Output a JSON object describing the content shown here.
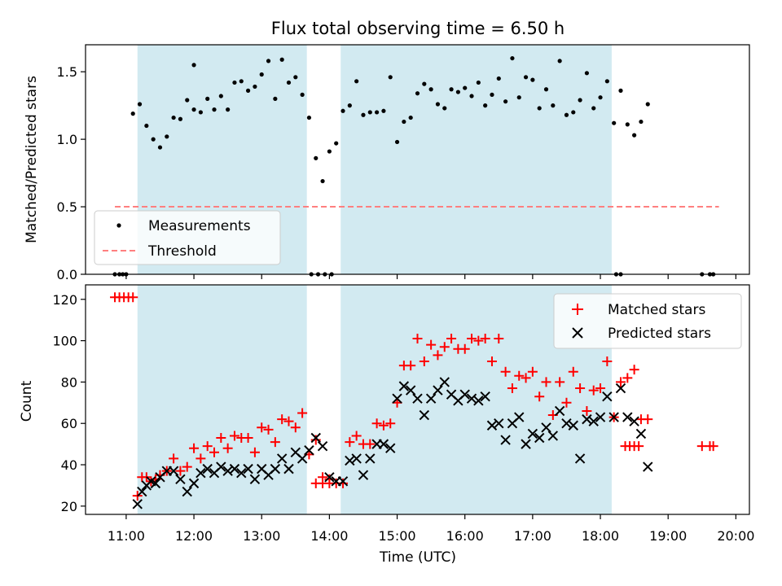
{
  "chart_data": {
    "type": "scatter",
    "title": "Flux total observing time = 6.50 h",
    "xlabel": "Time (UTC)",
    "xlim": [
      "10:24",
      "20:12"
    ],
    "x_ticks": [
      "11:00",
      "12:00",
      "13:00",
      "14:00",
      "15:00",
      "16:00",
      "17:00",
      "18:00",
      "19:00",
      "20:00"
    ],
    "observing_windows": [
      [
        "11:10",
        "13:40"
      ],
      [
        "14:10",
        "18:10"
      ]
    ],
    "window_color": "#add8e6",
    "top_panel": {
      "ylabel": "Matched/Predicted stars",
      "ylim": [
        0,
        1.7
      ],
      "y_ticks": [
        "0.0",
        "0.5",
        "1.0",
        "1.5"
      ],
      "legend_position": "lower-left",
      "measurements": {
        "name": "Measurements",
        "color": "#000000",
        "points": [
          [
            "10:50",
            0
          ],
          [
            "10:54",
            0
          ],
          [
            "10:57",
            0
          ],
          [
            "11:00",
            0
          ],
          [
            "11:06",
            1.19
          ],
          [
            "11:12",
            1.26
          ],
          [
            "11:18",
            1.1
          ],
          [
            "11:24",
            1.0
          ],
          [
            "11:30",
            0.94
          ],
          [
            "11:36",
            1.02
          ],
          [
            "11:42",
            1.16
          ],
          [
            "11:48",
            1.15
          ],
          [
            "11:54",
            1.29
          ],
          [
            "12:00",
            1.22
          ],
          [
            "12:00",
            1.55
          ],
          [
            "12:06",
            1.2
          ],
          [
            "12:12",
            1.3
          ],
          [
            "12:18",
            1.22
          ],
          [
            "12:24",
            1.32
          ],
          [
            "12:30",
            1.22
          ],
          [
            "12:36",
            1.42
          ],
          [
            "12:42",
            1.43
          ],
          [
            "12:48",
            1.36
          ],
          [
            "12:54",
            1.39
          ],
          [
            "13:00",
            1.48
          ],
          [
            "13:06",
            1.58
          ],
          [
            "13:12",
            1.3
          ],
          [
            "13:18",
            1.59
          ],
          [
            "13:24",
            1.42
          ],
          [
            "13:30",
            1.46
          ],
          [
            "13:36",
            1.33
          ],
          [
            "13:42",
            1.16
          ],
          [
            "13:48",
            0.86
          ],
          [
            "13:54",
            0.69
          ],
          [
            "14:00",
            0.91
          ],
          [
            "13:44",
            0
          ],
          [
            "13:50",
            0
          ],
          [
            "13:56",
            0
          ],
          [
            "14:02",
            0
          ],
          [
            "14:06",
            0.97
          ],
          [
            "14:12",
            1.21
          ],
          [
            "14:18",
            1.25
          ],
          [
            "14:24",
            1.43
          ],
          [
            "14:30",
            1.18
          ],
          [
            "14:36",
            1.2
          ],
          [
            "14:42",
            1.2
          ],
          [
            "14:48",
            1.21
          ],
          [
            "14:54",
            1.46
          ],
          [
            "15:00",
            0.98
          ],
          [
            "15:06",
            1.13
          ],
          [
            "15:12",
            1.16
          ],
          [
            "15:18",
            1.34
          ],
          [
            "15:24",
            1.41
          ],
          [
            "15:30",
            1.37
          ],
          [
            "15:36",
            1.26
          ],
          [
            "15:42",
            1.23
          ],
          [
            "15:48",
            1.37
          ],
          [
            "15:54",
            1.35
          ],
          [
            "16:00",
            1.38
          ],
          [
            "16:06",
            1.32
          ],
          [
            "16:12",
            1.42
          ],
          [
            "16:18",
            1.25
          ],
          [
            "16:24",
            1.33
          ],
          [
            "16:30",
            1.45
          ],
          [
            "16:36",
            1.28
          ],
          [
            "16:42",
            1.6
          ],
          [
            "16:48",
            1.31
          ],
          [
            "16:54",
            1.46
          ],
          [
            "17:00",
            1.44
          ],
          [
            "17:06",
            1.23
          ],
          [
            "17:12",
            1.37
          ],
          [
            "17:18",
            1.25
          ],
          [
            "17:24",
            1.58
          ],
          [
            "17:30",
            1.18
          ],
          [
            "17:36",
            1.2
          ],
          [
            "17:42",
            1.29
          ],
          [
            "17:48",
            1.49
          ],
          [
            "17:54",
            1.23
          ],
          [
            "18:00",
            1.31
          ],
          [
            "18:06",
            1.43
          ],
          [
            "18:12",
            1.12
          ],
          [
            "18:18",
            1.36
          ],
          [
            "18:24",
            1.11
          ],
          [
            "18:30",
            1.03
          ],
          [
            "18:36",
            1.13
          ],
          [
            "18:42",
            1.26
          ],
          [
            "18:14",
            0
          ],
          [
            "18:18",
            0
          ],
          [
            "19:30",
            0
          ],
          [
            "19:37",
            0
          ],
          [
            "19:40",
            0
          ]
        ]
      },
      "threshold": {
        "name": "Threshold",
        "value": 0.5,
        "x_range": [
          "10:50",
          "19:45"
        ],
        "color": "#ff7f7f"
      }
    },
    "bottom_panel": {
      "ylabel": "Count",
      "ylim": [
        16,
        127
      ],
      "y_ticks": [
        "20",
        "40",
        "60",
        "80",
        "100",
        "120"
      ],
      "legend_position": "upper-right",
      "series": [
        {
          "name": "Matched stars",
          "marker": "+",
          "color": "#ff0000",
          "points": [
            [
              "10:50",
              121
            ],
            [
              "10:54",
              121
            ],
            [
              "10:58",
              121
            ],
            [
              "11:02",
              121
            ],
            [
              "11:06",
              121
            ],
            [
              "11:10",
              25
            ],
            [
              "11:14",
              34
            ],
            [
              "11:18",
              34
            ],
            [
              "11:22",
              32
            ],
            [
              "11:26",
              33
            ],
            [
              "11:30",
              35
            ],
            [
              "11:36",
              37
            ],
            [
              "11:42",
              43
            ],
            [
              "11:48",
              37
            ],
            [
              "11:54",
              39
            ],
            [
              "12:00",
              48
            ],
            [
              "12:06",
              43
            ],
            [
              "12:12",
              49
            ],
            [
              "12:18",
              46
            ],
            [
              "12:24",
              53
            ],
            [
              "12:30",
              48
            ],
            [
              "12:36",
              54
            ],
            [
              "12:42",
              53
            ],
            [
              "12:48",
              53
            ],
            [
              "12:54",
              46
            ],
            [
              "13:00",
              58
            ],
            [
              "13:06",
              57
            ],
            [
              "13:12",
              51
            ],
            [
              "13:18",
              62
            ],
            [
              "13:24",
              61
            ],
            [
              "13:30",
              58
            ],
            [
              "13:36",
              65
            ],
            [
              "13:42",
              45
            ],
            [
              "13:48",
              52
            ],
            [
              "13:54",
              34
            ],
            [
              "14:00",
              33
            ],
            [
              "13:48",
              31
            ],
            [
              "13:54",
              31
            ],
            [
              "14:00",
              31
            ],
            [
              "14:06",
              31
            ],
            [
              "14:12",
              31
            ],
            [
              "14:18",
              51
            ],
            [
              "14:24",
              54
            ],
            [
              "14:30",
              50
            ],
            [
              "14:36",
              50
            ],
            [
              "14:42",
              60
            ],
            [
              "14:48",
              59
            ],
            [
              "14:54",
              60
            ],
            [
              "15:00",
              70
            ],
            [
              "15:06",
              88
            ],
            [
              "15:12",
              88
            ],
            [
              "15:18",
              101
            ],
            [
              "15:24",
              90
            ],
            [
              "15:30",
              98
            ],
            [
              "15:36",
              93
            ],
            [
              "15:42",
              97
            ],
            [
              "15:48",
              101
            ],
            [
              "15:54",
              96
            ],
            [
              "16:00",
              96
            ],
            [
              "16:06",
              101
            ],
            [
              "16:12",
              100
            ],
            [
              "16:18",
              101
            ],
            [
              "16:24",
              90
            ],
            [
              "16:30",
              101
            ],
            [
              "16:36",
              85
            ],
            [
              "16:42",
              77
            ],
            [
              "16:48",
              83
            ],
            [
              "16:54",
              82
            ],
            [
              "17:00",
              85
            ],
            [
              "17:06",
              73
            ],
            [
              "17:12",
              80
            ],
            [
              "17:18",
              64
            ],
            [
              "17:24",
              80
            ],
            [
              "17:30",
              70
            ],
            [
              "17:36",
              85
            ],
            [
              "17:42",
              77
            ],
            [
              "17:48",
              66
            ],
            [
              "17:54",
              76
            ],
            [
              "18:00",
              77
            ],
            [
              "18:06",
              90
            ],
            [
              "18:12",
              63
            ],
            [
              "18:18",
              80
            ],
            [
              "18:24",
              82
            ],
            [
              "18:30",
              86
            ],
            [
              "18:36",
              62
            ],
            [
              "18:42",
              62
            ],
            [
              "18:22",
              49
            ],
            [
              "18:26",
              49
            ],
            [
              "18:30",
              49
            ],
            [
              "18:34",
              49
            ],
            [
              "19:30",
              49
            ],
            [
              "19:37",
              49
            ],
            [
              "19:40",
              49
            ]
          ]
        },
        {
          "name": "Predicted stars",
          "marker": "x",
          "color": "#000000",
          "points": [
            [
              "11:10",
              21
            ],
            [
              "11:14",
              27
            ],
            [
              "11:18",
              30
            ],
            [
              "11:22",
              32
            ],
            [
              "11:26",
              31
            ],
            [
              "11:30",
              34
            ],
            [
              "11:36",
              37
            ],
            [
              "11:42",
              37
            ],
            [
              "11:48",
              33
            ],
            [
              "11:54",
              27
            ],
            [
              "12:00",
              31
            ],
            [
              "12:06",
              36
            ],
            [
              "12:12",
              38
            ],
            [
              "12:18",
              36
            ],
            [
              "12:24",
              39
            ],
            [
              "12:30",
              37
            ],
            [
              "12:36",
              38
            ],
            [
              "12:42",
              36
            ],
            [
              "12:48",
              38
            ],
            [
              "12:54",
              33
            ],
            [
              "13:00",
              38
            ],
            [
              "13:06",
              35
            ],
            [
              "13:12",
              38
            ],
            [
              "13:18",
              43
            ],
            [
              "13:24",
              38
            ],
            [
              "13:30",
              46
            ],
            [
              "13:36",
              43
            ],
            [
              "13:42",
              47
            ],
            [
              "13:48",
              53
            ],
            [
              "13:54",
              49
            ],
            [
              "14:00",
              34
            ],
            [
              "14:06",
              32
            ],
            [
              "14:12",
              32
            ],
            [
              "14:18",
              42
            ],
            [
              "14:24",
              43
            ],
            [
              "14:30",
              35
            ],
            [
              "14:36",
              43
            ],
            [
              "14:42",
              50
            ],
            [
              "14:48",
              50
            ],
            [
              "14:54",
              48
            ],
            [
              "15:00",
              72
            ],
            [
              "15:06",
              78
            ],
            [
              "15:12",
              76
            ],
            [
              "15:18",
              72
            ],
            [
              "15:24",
              64
            ],
            [
              "15:30",
              72
            ],
            [
              "15:36",
              76
            ],
            [
              "15:42",
              80
            ],
            [
              "15:48",
              74
            ],
            [
              "15:54",
              71
            ],
            [
              "16:00",
              74
            ],
            [
              "16:06",
              72
            ],
            [
              "16:12",
              71
            ],
            [
              "16:18",
              73
            ],
            [
              "16:24",
              59
            ],
            [
              "16:30",
              60
            ],
            [
              "16:36",
              52
            ],
            [
              "16:42",
              60
            ],
            [
              "16:48",
              63
            ],
            [
              "16:54",
              50
            ],
            [
              "17:00",
              55
            ],
            [
              "17:06",
              53
            ],
            [
              "17:12",
              58
            ],
            [
              "17:18",
              54
            ],
            [
              "17:24",
              66
            ],
            [
              "17:30",
              60
            ],
            [
              "17:36",
              59
            ],
            [
              "17:42",
              43
            ],
            [
              "17:48",
              62
            ],
            [
              "17:54",
              61
            ],
            [
              "18:00",
              63
            ],
            [
              "18:06",
              73
            ],
            [
              "18:12",
              63
            ],
            [
              "18:18",
              77
            ],
            [
              "18:24",
              63
            ],
            [
              "18:30",
              61
            ],
            [
              "18:36",
              55
            ],
            [
              "18:42",
              39
            ]
          ]
        }
      ]
    }
  }
}
